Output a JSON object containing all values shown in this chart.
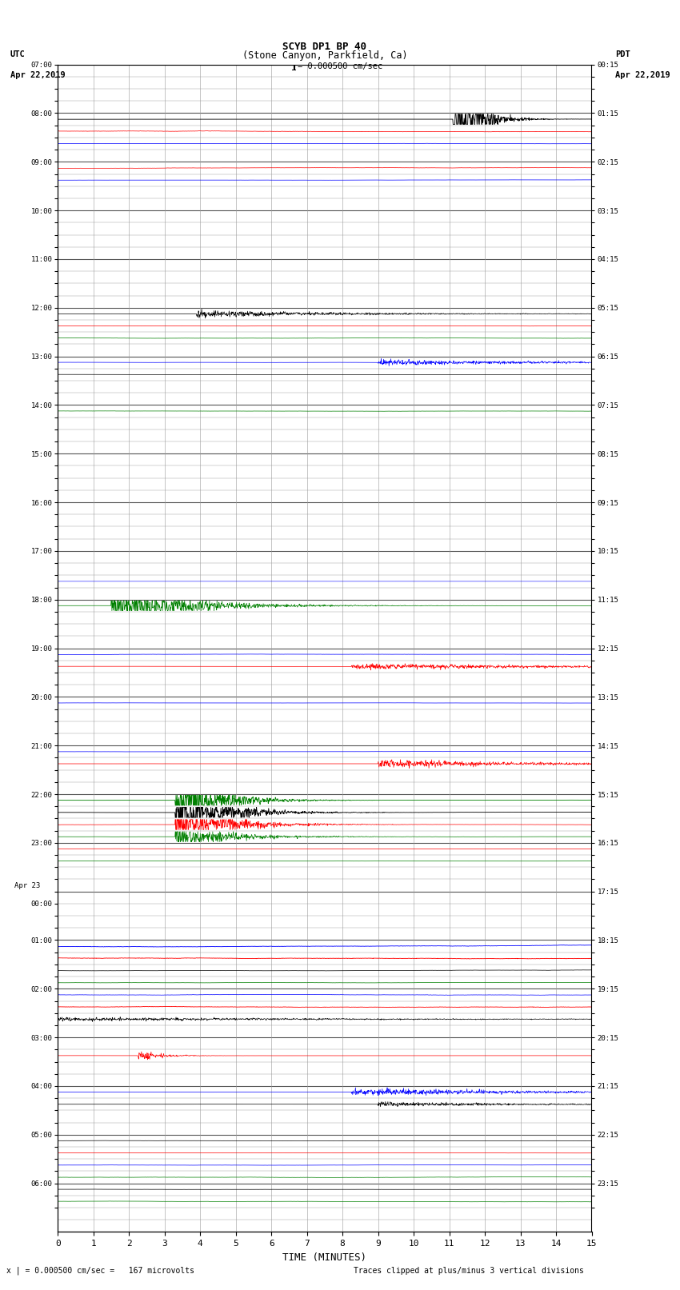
{
  "title_line1": "SCYB DP1 BP 40",
  "title_line2": "(Stone Canyon, Parkfield, Ca)",
  "scale_text": "= 0.000500 cm/sec",
  "left_label": "UTC",
  "left_date": "Apr 22,2019",
  "right_label": "PDT",
  "right_date": "Apr 22,2019",
  "bottom_label": "TIME (MINUTES)",
  "bottom_note_left": "x | = 0.000500 cm/sec =   167 microvolts",
  "bottom_note_right": "Traces clipped at plus/minus 3 vertical divisions",
  "left_times": [
    "07:00",
    "",
    "",
    "",
    "08:00",
    "",
    "",
    "",
    "09:00",
    "",
    "",
    "",
    "10:00",
    "",
    "",
    "",
    "11:00",
    "",
    "",
    "",
    "12:00",
    "",
    "",
    "",
    "13:00",
    "",
    "",
    "",
    "14:00",
    "",
    "",
    "",
    "15:00",
    "",
    "",
    "",
    "16:00",
    "",
    "",
    "",
    "17:00",
    "",
    "",
    "",
    "18:00",
    "",
    "",
    "",
    "19:00",
    "",
    "",
    "",
    "20:00",
    "",
    "",
    "",
    "21:00",
    "",
    "",
    "",
    "22:00",
    "",
    "",
    "",
    "23:00",
    "",
    "",
    "",
    "Apr 23",
    "00:00",
    "",
    "",
    "01:00",
    "",
    "",
    "",
    "02:00",
    "",
    "",
    "",
    "03:00",
    "",
    "",
    "",
    "04:00",
    "",
    "",
    "",
    "05:00",
    "",
    "",
    "",
    "06:00",
    "",
    ""
  ],
  "right_times": [
    "00:15",
    "",
    "",
    "",
    "01:15",
    "",
    "",
    "",
    "02:15",
    "",
    "",
    "",
    "03:15",
    "",
    "",
    "",
    "04:15",
    "",
    "",
    "",
    "05:15",
    "",
    "",
    "",
    "06:15",
    "",
    "",
    "",
    "07:15",
    "",
    "",
    "",
    "08:15",
    "",
    "",
    "",
    "09:15",
    "",
    "",
    "",
    "10:15",
    "",
    "",
    "",
    "11:15",
    "",
    "",
    "",
    "12:15",
    "",
    "",
    "",
    "13:15",
    "",
    "",
    "",
    "14:15",
    "",
    "",
    "",
    "15:15",
    "",
    "",
    "",
    "16:15",
    "",
    "",
    "",
    "17:15",
    "",
    "",
    "",
    "18:15",
    "",
    "",
    "",
    "19:15",
    "",
    "",
    "",
    "20:15",
    "",
    "",
    "",
    "21:15",
    "",
    "",
    "",
    "22:15",
    "",
    "",
    "",
    "23:15",
    "",
    ""
  ],
  "background_color": "white",
  "grid_color": "#999999",
  "xlim": [
    0,
    15
  ],
  "xticks": [
    0,
    1,
    2,
    3,
    4,
    5,
    6,
    7,
    8,
    9,
    10,
    11,
    12,
    13,
    14,
    15
  ],
  "figsize": [
    8.5,
    16.13
  ],
  "dpi": 100
}
